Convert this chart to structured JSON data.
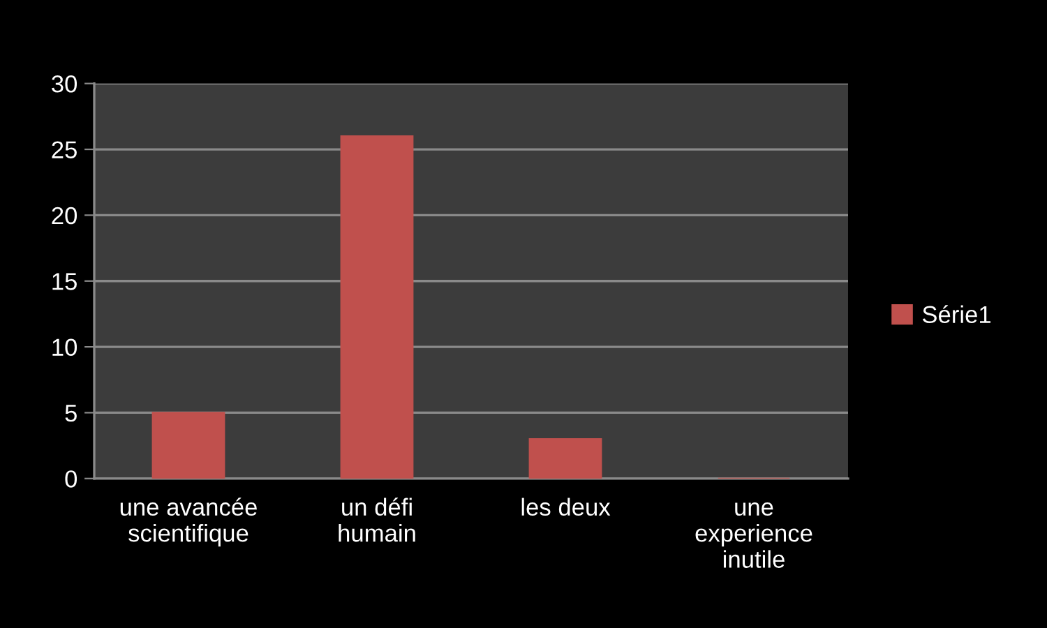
{
  "chart_data": {
    "type": "bar",
    "categories": [
      "une avancée\nscientifique",
      "un défi\nhumain",
      "les deux",
      "une\nexperience\ninutile"
    ],
    "series": [
      {
        "name": "Série1",
        "color": "#c0504d",
        "values": [
          5,
          26,
          3,
          0
        ]
      }
    ],
    "ylim": [
      0,
      30
    ],
    "yticks": [
      0,
      5,
      10,
      15,
      20,
      25,
      30
    ],
    "grid": "y",
    "legend": "right"
  }
}
